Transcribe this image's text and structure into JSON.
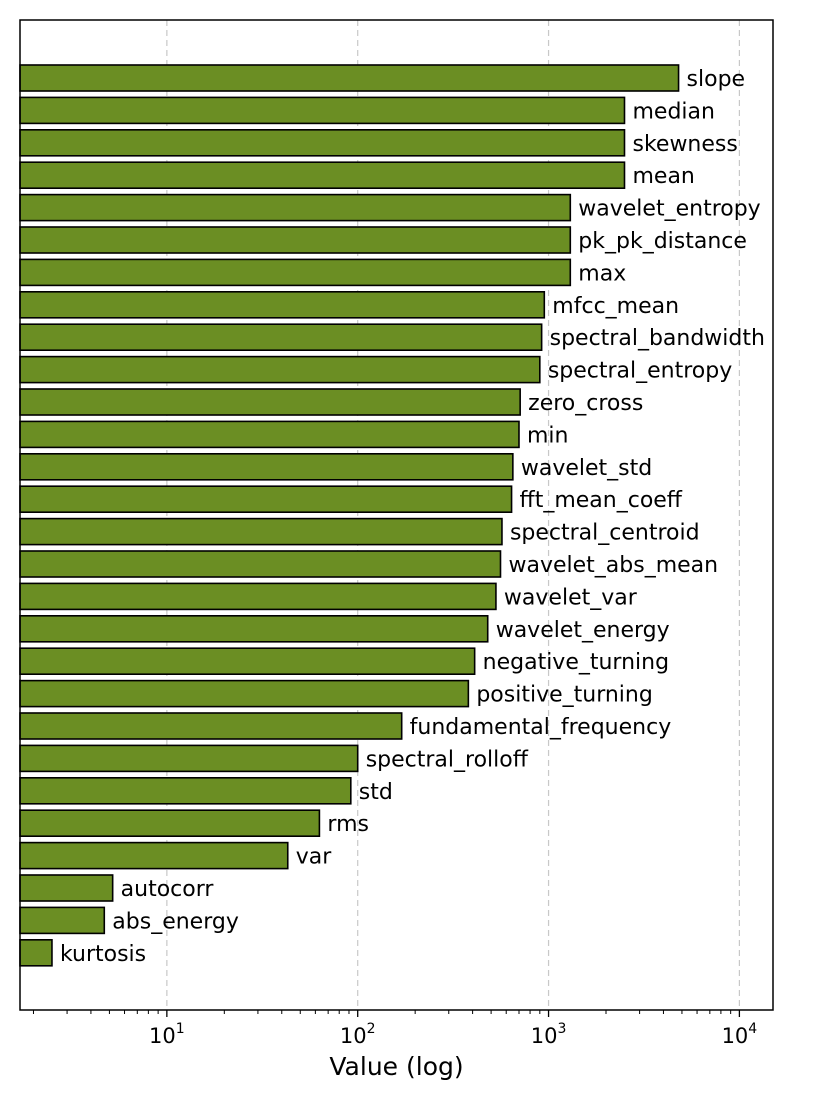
{
  "chart_data": {
    "type": "bar",
    "orientation": "horizontal",
    "title": "",
    "xlabel": "Value (log)",
    "ylabel": "",
    "xscale": "log",
    "xlim": [
      1.7,
      15000
    ],
    "grid": "x-major dashed",
    "bar_color": "#6b8e23",
    "bar_edge_color": "#000000",
    "categories": [
      "slope",
      "median",
      "skewness",
      "mean",
      "wavelet_entropy",
      "pk_pk_distance",
      "max",
      "mfcc_mean",
      "spectral_bandwidth",
      "spectral_entropy",
      "zero_cross",
      "min",
      "wavelet_std",
      "fft_mean_coeff",
      "spectral_centroid",
      "wavelet_abs_mean",
      "wavelet_var",
      "wavelet_energy",
      "negative_turning",
      "positive_turning",
      "fundamental_frequency",
      "spectral_rolloff",
      "std",
      "rms",
      "var",
      "autocorr",
      "abs_energy",
      "kurtosis"
    ],
    "values": [
      4800,
      2500,
      2500,
      2500,
      1300,
      1300,
      1300,
      950,
      920,
      900,
      710,
      700,
      650,
      640,
      570,
      560,
      530,
      480,
      410,
      380,
      170,
      100,
      92,
      63,
      43,
      5.2,
      4.7,
      2.5
    ],
    "x_ticks": [
      {
        "value": 10,
        "base": "10",
        "exp": "1"
      },
      {
        "value": 100,
        "base": "10",
        "exp": "2"
      },
      {
        "value": 1000,
        "base": "10",
        "exp": "3"
      },
      {
        "value": 10000,
        "base": "10",
        "exp": "4"
      }
    ]
  }
}
